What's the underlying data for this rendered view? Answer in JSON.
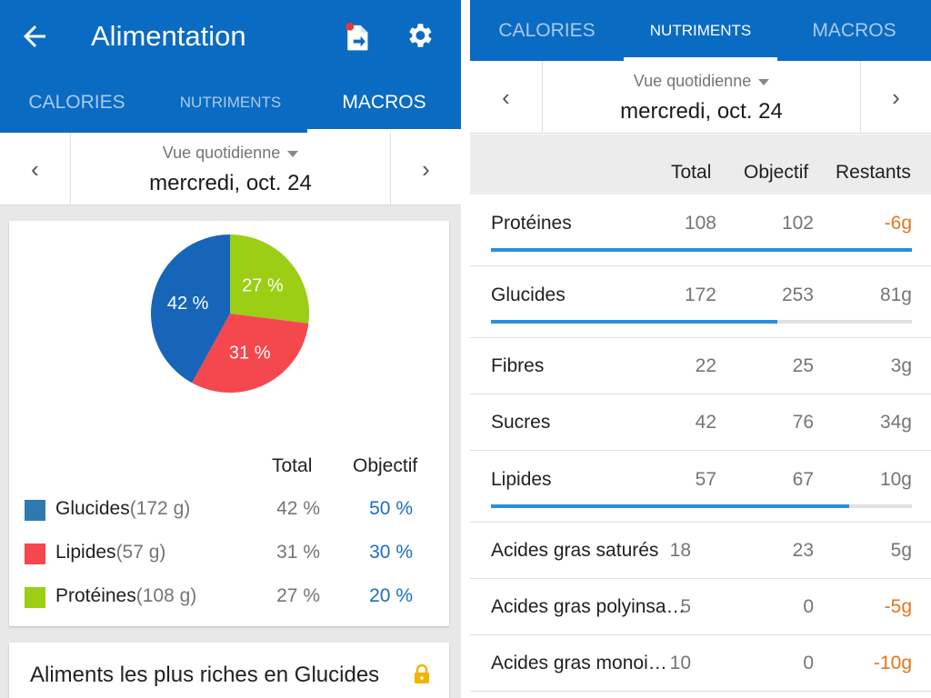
{
  "header": {
    "title": "Alimentation",
    "back_icon": "arrow-left-icon",
    "export_icon": "file-export-icon",
    "settings_icon": "gear-icon"
  },
  "tabs": [
    "CALORIES",
    "NUTRIMENTS",
    "MACROS"
  ],
  "date_nav": {
    "view": "Vue quotidienne",
    "date": "mercredi, oct. 24"
  },
  "macros": {
    "headers": {
      "total": "Total",
      "objective": "Objectif"
    },
    "items": [
      {
        "name": "Glucides",
        "grams": "(172 g)",
        "total": "42 %",
        "objective": "50 %",
        "percent": 42,
        "color": "#1665b8"
      },
      {
        "name": "Lipides",
        "grams": "(57 g)",
        "total": "31 %",
        "objective": "30 %",
        "percent": 31,
        "color": "#f5474e"
      },
      {
        "name": "Protéines",
        "grams": "(108 g)",
        "total": "27 %",
        "objective": "20 %",
        "percent": 27,
        "color": "#9bce14"
      }
    ],
    "pie_labels": [
      "42 %",
      "31 %",
      "27 %"
    ]
  },
  "richest_foods": {
    "title": "Aliments les plus riches en Glucides",
    "icon": "lock-icon"
  },
  "nutrients": {
    "headers": {
      "total": "Total",
      "objective": "Objectif",
      "remaining": "Restants"
    },
    "rows": [
      {
        "name": "Protéines",
        "total": "108",
        "objective": "102",
        "remaining": "-6g",
        "negative": true,
        "progress": 1.0
      },
      {
        "name": "Glucides",
        "total": "172",
        "objective": "253",
        "remaining": "81g",
        "negative": false,
        "progress": 0.68
      },
      {
        "name": "Fibres",
        "total": "22",
        "objective": "25",
        "remaining": "3g",
        "negative": false
      },
      {
        "name": "Sucres",
        "total": "42",
        "objective": "76",
        "remaining": "34g",
        "negative": false
      },
      {
        "name": "Lipides",
        "total": "57",
        "objective": "67",
        "remaining": "10g",
        "negative": false,
        "progress": 0.85
      },
      {
        "name": "Acides gras saturés",
        "total": "18",
        "objective": "23",
        "remaining": "5g",
        "negative": false
      },
      {
        "name": "Acides gras polyinsa…",
        "total": "5",
        "objective": "0",
        "remaining": "-5g",
        "negative": true
      },
      {
        "name": "Acides gras monoi…",
        "total": "10",
        "objective": "0",
        "remaining": "-10g",
        "negative": true
      }
    ]
  }
}
